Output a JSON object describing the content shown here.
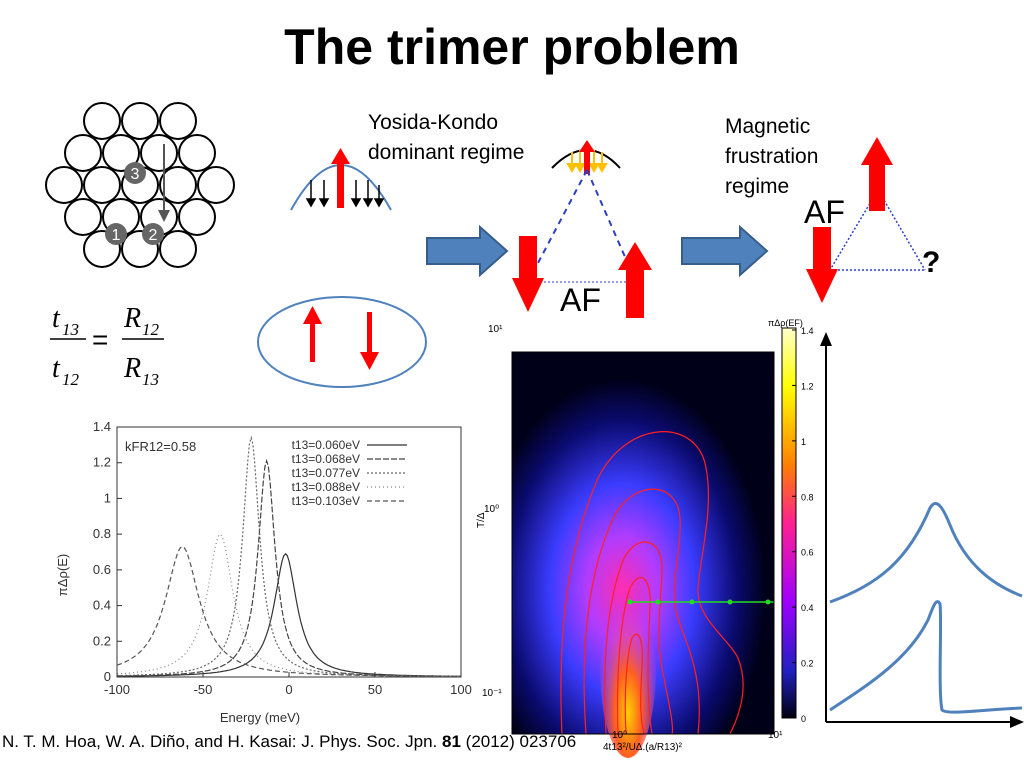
{
  "slide": {
    "title": "The trimer problem",
    "yosida_label_line1": "Yosida-Kondo",
    "yosida_label_line2": "dominant regime",
    "magnetic_label_line1": "Magnetic",
    "magnetic_label_line2": "frustration",
    "magnetic_label_line3": "regime",
    "af_label_1": "AF",
    "af_label_2": "AF",
    "question_mark": "?",
    "lattice_sites": [
      "1",
      "2",
      "3"
    ],
    "colors": {
      "arrow_red": "#ff0000",
      "block_arrow": "#4f81bd",
      "ellipse": "#4f81bd",
      "curve": "#4f81bd"
    }
  },
  "formula": {
    "t13": "t",
    "t13_sub": "13",
    "t12": "t",
    "t12_sub": "12",
    "R12": "R",
    "R12_sub": "12",
    "R13": "R",
    "R13_sub": "13",
    "equals": "="
  },
  "citation": {
    "prefix": "N. T. M. Hoa, W. A. Diño, and H. Kasai: J. Phys. Soc. Jpn.",
    "volume": "81",
    "suffix": "(2012) 023706"
  },
  "chart_data": [
    {
      "type": "line",
      "xlabel": "Energy (meV)",
      "ylabel": "πΔρ(E)",
      "xlim": [
        -100,
        100
      ],
      "ylim": [
        0,
        1.4
      ],
      "x_ticks": [
        "-100",
        "-50",
        "0",
        "50",
        "100"
      ],
      "y_ticks": [
        "0",
        "0.2",
        "0.4",
        "0.6",
        "0.8",
        "1",
        "1.2",
        "1.4"
      ],
      "annotation": "kFR12=0.58",
      "legend_position": "top-right",
      "series": [
        {
          "name": "t13=0.060eV",
          "peak_x": -2,
          "peak_y": 0.69,
          "width": 8
        },
        {
          "name": "t13=0.068eV",
          "peak_x": -13,
          "peak_y": 1.21,
          "width": 6
        },
        {
          "name": "t13=0.077eV",
          "peak_x": -22,
          "peak_y": 1.34,
          "width": 6
        },
        {
          "name": "t13=0.088eV",
          "peak_x": -40,
          "peak_y": 0.8,
          "width": 9
        },
        {
          "name": "t13=0.103eV",
          "peak_x": -62,
          "peak_y": 0.73,
          "width": 12
        }
      ]
    },
    {
      "type": "heatmap",
      "ylabel": "T/Δ",
      "xlabel": "4t13²/UΔ.(a/R13)²",
      "colorbar_label": "πΔρ(EF)",
      "x_ticks": [
        "10⁰",
        "10¹"
      ],
      "y_ticks": [
        "10¹",
        "10⁰",
        "10⁻¹"
      ],
      "colorbar_ticks": [
        "1.4",
        "1.2",
        "1",
        "0.8",
        "0.6",
        "0.4",
        "0.2",
        "0"
      ],
      "scale": "log-log"
    }
  ]
}
